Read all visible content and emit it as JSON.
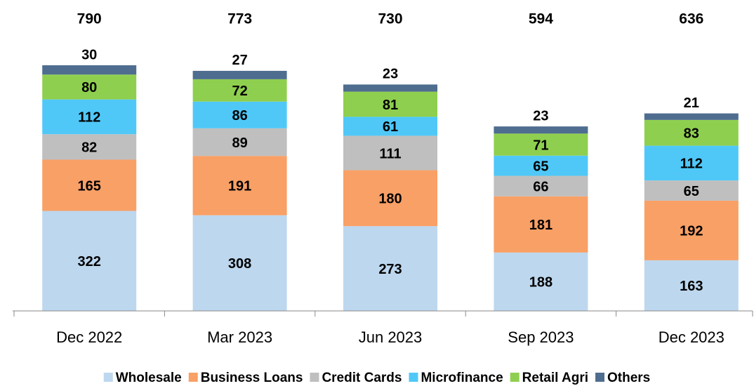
{
  "chart_data": {
    "type": "stacked_bar",
    "categories": [
      "Dec 2022",
      "Mar 2023",
      "Jun 2023",
      "Sep 2023",
      "Dec 2023"
    ],
    "totals": [
      790,
      773,
      730,
      594,
      636
    ],
    "ylim": [
      0,
      1000
    ],
    "series": [
      {
        "name": "Wholesale",
        "color": "#bdd7ee",
        "values": [
          322,
          308,
          273,
          188,
          163
        ]
      },
      {
        "name": "Business Loans",
        "color": "#f9a066",
        "values": [
          165,
          191,
          180,
          181,
          192
        ]
      },
      {
        "name": "Credit Cards",
        "color": "#bfbfbf",
        "values": [
          82,
          89,
          111,
          66,
          65
        ]
      },
      {
        "name": "Microfinance",
        "color": "#4fc8f8",
        "values": [
          112,
          86,
          61,
          65,
          112
        ]
      },
      {
        "name": "Retail Agri",
        "color": "#8fcf4f",
        "values": [
          80,
          72,
          81,
          71,
          83
        ]
      },
      {
        "name": "Others",
        "color": "#4f6d8f",
        "values": [
          30,
          27,
          23,
          23,
          21
        ]
      }
    ]
  }
}
